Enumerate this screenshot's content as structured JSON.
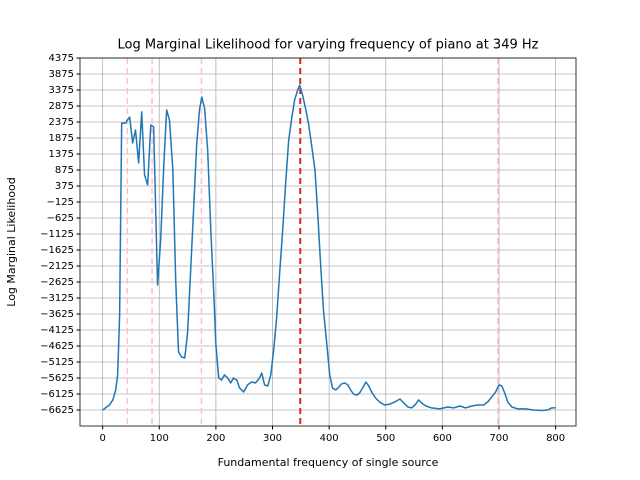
{
  "chart_data": {
    "type": "line",
    "title": "Log Marginal Likelihood for varying frequency of piano at 349 Hz",
    "xlabel": "Fundamental frequency of single source",
    "ylabel": "Log Marginal Likelihood",
    "color": "#1f77b4",
    "x": [
      0,
      12,
      18,
      23,
      26.5,
      30,
      33.6,
      40.6,
      44,
      47.7,
      53,
      58,
      63.6,
      69,
      74,
      79.5,
      85,
      90,
      97,
      102.5,
      108,
      113,
      118,
      124,
      129,
      134,
      139.5,
      145,
      150,
      155.5,
      161,
      166,
      171,
      175,
      180,
      185.5,
      191,
      196,
      200,
      205,
      210,
      215,
      221,
      226,
      231,
      237,
      242,
      249,
      256,
      263,
      270,
      277,
      281,
      286,
      291.5,
      297,
      302,
      307,
      313,
      318,
      323,
      328.6,
      334,
      339,
      344.5,
      348,
      353,
      359,
      364,
      369,
      375,
      380,
      385,
      390,
      396,
      401,
      406,
      412,
      417,
      422,
      427.6,
      433,
      438,
      443,
      449,
      454,
      459,
      465,
      470,
      475,
      482,
      489,
      498,
      507,
      516,
      525,
      532,
      539,
      546,
      553,
      558,
      563.6,
      571,
      581,
      595,
      609.5,
      620,
      631,
      641,
      652,
      662.5,
      673,
      680,
      687,
      694,
      700,
      705,
      710,
      715.5,
      722.6,
      733,
      747,
      761,
      775.6,
      786,
      793,
      800
    ],
    "values": [
      -6625,
      -6470,
      -6310,
      -6000,
      -5530,
      -3660,
      2340,
      2340,
      2440,
      2530,
      1720,
      2125,
      1095,
      2690,
      720,
      410,
      2280,
      2220,
      -2720,
      -1310,
      1030,
      2750,
      2440,
      875,
      -2560,
      -4810,
      -4970,
      -5000,
      -4220,
      -2250,
      -220,
      1655,
      2750,
      3155,
      2810,
      1500,
      -1000,
      -2870,
      -4590,
      -5625,
      -5690,
      -5530,
      -5625,
      -5780,
      -5625,
      -5690,
      -5940,
      -6060,
      -5840,
      -5750,
      -5780,
      -5625,
      -5470,
      -5840,
      -5875,
      -5530,
      -4750,
      -3810,
      -2250,
      -1000,
      410,
      1810,
      2500,
      3060,
      3375,
      3530,
      3220,
      2750,
      2280,
      1655,
      875,
      -530,
      -2090,
      -3500,
      -4590,
      -5530,
      -5940,
      -6000,
      -5910,
      -5810,
      -5780,
      -5840,
      -6000,
      -6125,
      -6160,
      -6090,
      -5940,
      -5750,
      -5875,
      -6060,
      -6250,
      -6375,
      -6470,
      -6440,
      -6375,
      -6280,
      -6410,
      -6530,
      -6560,
      -6440,
      -6310,
      -6410,
      -6500,
      -6560,
      -6590,
      -6530,
      -6560,
      -6500,
      -6560,
      -6500,
      -6470,
      -6470,
      -6375,
      -6220,
      -6060,
      -5840,
      -5875,
      -6090,
      -6375,
      -6530,
      -6590,
      -6590,
      -6625,
      -6640,
      -6625,
      -6560,
      -6560
    ],
    "vlines": [
      {
        "x": 349,
        "color": "#d62728"
      },
      {
        "x": 43.625,
        "color": "#ffc0cb"
      },
      {
        "x": 87.25,
        "color": "#ffc0cb"
      },
      {
        "x": 174.5,
        "color": "#ffc0cb"
      },
      {
        "x": 698,
        "color": "#ffc0cb"
      }
    ],
    "xlim": [
      -40,
      836
    ],
    "xticks": [
      0,
      100,
      200,
      300,
      400,
      500,
      600,
      700,
      800
    ],
    "ylim": [
      -7125,
      4375
    ],
    "yticks": [
      {
        "value": -6625,
        "label": "−6625"
      },
      {
        "value": -6125,
        "label": "−6125"
      },
      {
        "value": -5625,
        "label": "−5625"
      },
      {
        "value": -5125,
        "label": "−5125"
      },
      {
        "value": -4625,
        "label": "−4625"
      },
      {
        "value": -4125,
        "label": "−4125"
      },
      {
        "value": -3625,
        "label": "−3625"
      },
      {
        "value": -3125,
        "label": "−3125"
      },
      {
        "value": -2625,
        "label": "−2625"
      },
      {
        "value": -2125,
        "label": "−2125"
      },
      {
        "value": -1625,
        "label": "−1625"
      },
      {
        "value": -1125,
        "label": "−1125"
      },
      {
        "value": -625,
        "label": "−625"
      },
      {
        "value": -125,
        "label": "−125"
      },
      375,
      875,
      1375,
      1875,
      2375,
      2875,
      3375,
      3875,
      4375
    ],
    "grid": true
  }
}
